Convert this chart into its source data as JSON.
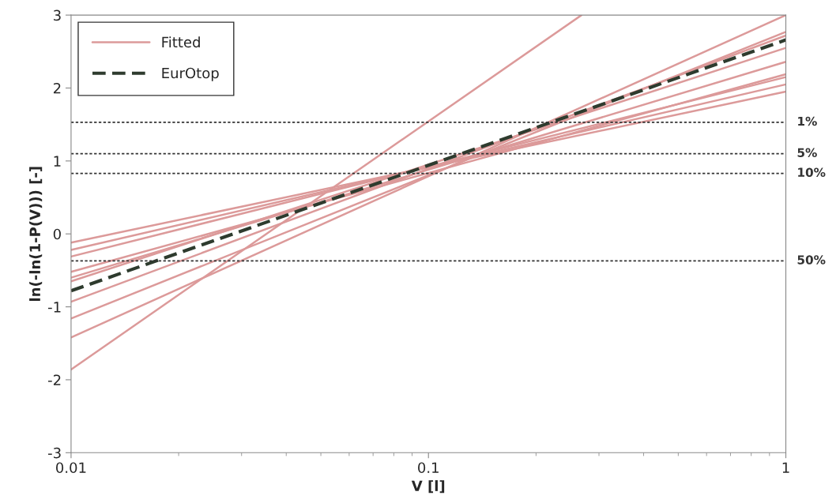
{
  "chart_data": {
    "type": "line",
    "xlabel": "V [l]",
    "ylabel": "ln(-ln(1-P(V))) [-]",
    "log": "x",
    "xlim": [
      0.01,
      1
    ],
    "xticks": [
      0.01,
      0.1,
      1
    ],
    "ylim": [
      -3,
      3
    ],
    "yticks": [
      -3,
      -2,
      -1,
      0,
      1,
      2,
      3
    ],
    "grid": false,
    "legend": "top left",
    "marker": "none",
    "series": [
      {
        "name": "Fitted",
        "color": "#dc9a9a",
        "x": [
          0.01,
          1
        ],
        "values": [
          -0.12,
          1.95
        ]
      },
      {
        "color": "#dc9a9a",
        "x": [
          0.01,
          1
        ],
        "values": [
          -0.22,
          2.05
        ]
      },
      {
        "color": "#dc9a9a",
        "x": [
          0.01,
          1
        ],
        "values": [
          -0.31,
          2.15
        ]
      },
      {
        "color": "#dc9a9a",
        "x": [
          0.01,
          1
        ],
        "values": [
          -0.52,
          2.19
        ]
      },
      {
        "color": "#dc9a9a",
        "x": [
          0.01,
          1
        ],
        "values": [
          -0.6,
          2.36
        ]
      },
      {
        "color": "#dc9a9a",
        "x": [
          0.01,
          1
        ],
        "values": [
          -0.65,
          2.55
        ]
      },
      {
        "color": "#dc9a9a",
        "x": [
          0.01,
          1
        ],
        "values": [
          -0.93,
          2.72
        ]
      },
      {
        "color": "#dc9a9a",
        "x": [
          0.01,
          1
        ],
        "values": [
          -1.16,
          2.77
        ]
      },
      {
        "color": "#dc9a9a",
        "x": [
          0.01,
          1
        ],
        "values": [
          -1.42,
          3.0
        ]
      },
      {
        "color": "#dc9a9a",
        "x": [
          0.01,
          0.268
        ],
        "values": [
          -1.86,
          3.0
        ]
      },
      {
        "name": "EurOtop",
        "color": "#2e3b2e",
        "line_style": "dashed",
        "x": [
          0.01,
          1
        ],
        "values": [
          -0.78,
          2.66
        ]
      }
    ],
    "ref_lines": [
      {
        "axis": "y",
        "value": 1.53,
        "color": "#333333",
        "line_style": "dotted"
      },
      {
        "axis": "y",
        "value": 1.1,
        "color": "#333333",
        "line_style": "dotted"
      },
      {
        "axis": "y",
        "value": 0.83,
        "color": "#333333",
        "line_style": "dotted"
      },
      {
        "axis": "y",
        "value": -0.37,
        "color": "#333333",
        "line_style": "dotted"
      }
    ],
    "annotations": [
      "1%",
      "5%",
      "10%",
      "50%"
    ]
  }
}
